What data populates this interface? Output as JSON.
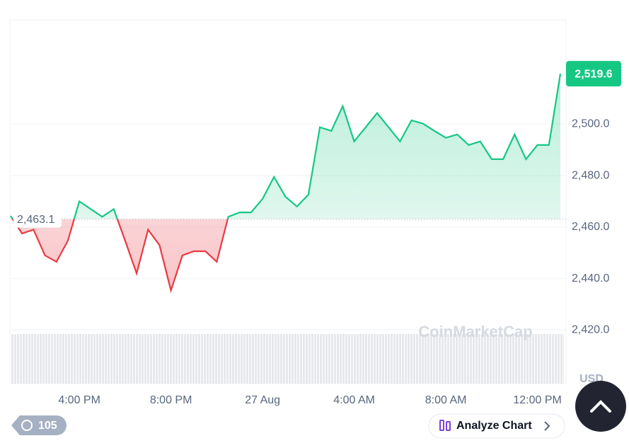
{
  "chart_data": {
    "type": "line",
    "categories": [
      null,
      null,
      null,
      null,
      null,
      null,
      "4:00 PM",
      null,
      null,
      null,
      null,
      null,
      null,
      null,
      "8:00 PM",
      null,
      null,
      null,
      null,
      null,
      null,
      null,
      "27 Aug",
      null,
      null,
      null,
      null,
      null,
      null,
      null,
      "4:00 AM",
      null,
      null,
      null,
      null,
      null,
      null,
      null,
      "8:00 AM",
      null,
      null,
      null,
      null,
      null,
      null,
      null,
      "12:00 PM",
      null,
      null
    ],
    "values": [
      2464.3,
      2457.5,
      2459,
      2449,
      2446.5,
      2454.7,
      2470,
      2467,
      2464,
      2467,
      2454.7,
      2442,
      2459,
      2453,
      2435.4,
      2449,
      2450.6,
      2450.6,
      2446.5,
      2464,
      2465.7,
      2465.7,
      2471,
      2479.5,
      2471.8,
      2468,
      2472.6,
      2498.8,
      2497.4,
      2507,
      2493.3,
      2498.8,
      2504.3,
      2498.8,
      2493.3,
      2501.5,
      2500.2,
      2497.4,
      2494.7,
      2496,
      2491.9,
      2493.3,
      2486.4,
      2486.4,
      2496,
      2486.4,
      2491.9,
      2491.9,
      2519.6
    ],
    "value_labels": [
      null,
      null,
      null,
      null,
      null,
      null,
      null,
      null,
      null,
      null,
      null,
      null,
      null,
      null,
      null,
      null,
      null,
      null,
      null,
      null,
      null,
      null,
      null,
      null,
      null,
      null,
      null,
      null,
      null,
      null,
      null,
      null,
      null,
      null,
      null,
      null,
      null,
      null,
      null,
      null,
      null,
      null,
      null,
      null,
      null,
      null,
      null,
      null,
      "2,519.6"
    ],
    "colors": {
      "up": "#16c784",
      "down": "#ea3943"
    },
    "reference": {
      "value": 2463.1,
      "label": "2,463.1"
    },
    "ylim": [
      2400,
      2540
    ],
    "yticks": [
      {
        "value": 2420,
        "label": "2,420.0"
      },
      {
        "value": 2440,
        "label": "2,440.0"
      },
      {
        "value": 2460,
        "label": "2,460.0"
      },
      {
        "value": 2480,
        "label": "2,480.0"
      },
      {
        "value": 2500,
        "label": "2,500.0"
      }
    ],
    "grid": true,
    "currency": "USD",
    "watermark": "CoinMarketCap"
  },
  "ui": {
    "badge": "105",
    "analyze_button": "Analyze Chart"
  }
}
